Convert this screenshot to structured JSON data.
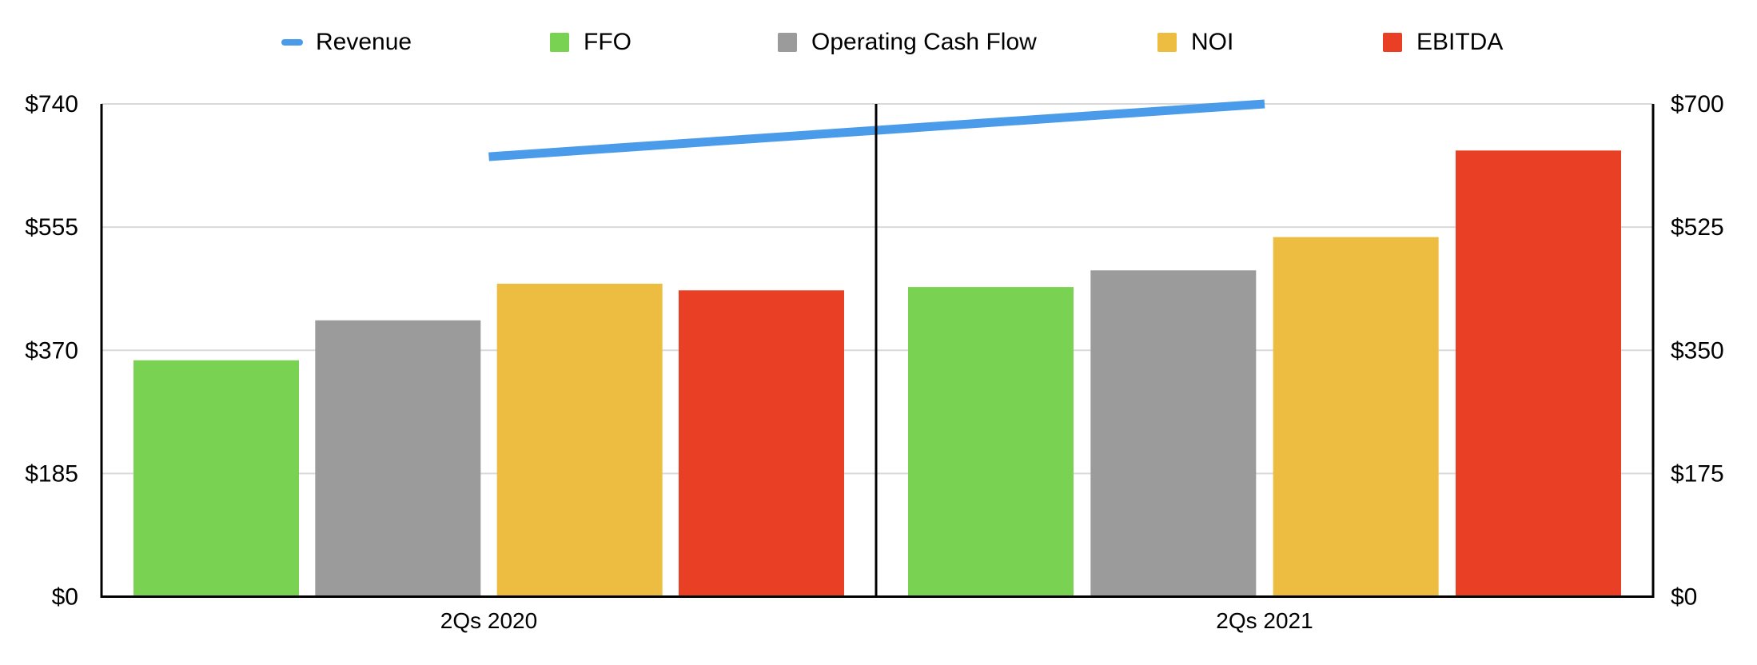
{
  "legend": {
    "items": [
      {
        "label": "Revenue",
        "color": "#4A9BEA",
        "glyph": "line"
      },
      {
        "label": "FFO",
        "color": "#79D252",
        "glyph": "square"
      },
      {
        "label": "Operating Cash Flow",
        "color": "#9B9B9B",
        "glyph": "square"
      },
      {
        "label": "NOI",
        "color": "#ECBD41",
        "glyph": "square"
      },
      {
        "label": "EBITDA",
        "color": "#E94025",
        "glyph": "square"
      }
    ]
  },
  "axes": {
    "left": {
      "ticks": [
        "$740",
        "$555",
        "$370",
        "$185",
        "$0"
      ],
      "max": 740
    },
    "right": {
      "ticks": [
        "$700",
        "$525",
        "$350",
        "$175",
        "$0"
      ],
      "max": 700
    }
  },
  "chart_data": {
    "type": "bar+line",
    "title": "",
    "categories": [
      "2Qs 2020",
      "2Qs 2021"
    ],
    "series": [
      {
        "name": "Revenue",
        "type": "line",
        "axis": "right",
        "color": "#4A9BEA",
        "values": [
          625,
          700
        ]
      },
      {
        "name": "FFO",
        "type": "bar",
        "axis": "left",
        "color": "#79D252",
        "values": [
          355,
          465
        ]
      },
      {
        "name": "Operating Cash Flow",
        "type": "bar",
        "axis": "left",
        "color": "#9B9B9B",
        "values": [
          415,
          490
        ]
      },
      {
        "name": "NOI",
        "type": "bar",
        "axis": "left",
        "color": "#ECBD41",
        "values": [
          470,
          540
        ]
      },
      {
        "name": "EBITDA",
        "type": "bar",
        "axis": "left",
        "color": "#E94025",
        "values": [
          460,
          670
        ]
      }
    ],
    "ylim_left": [
      0,
      740
    ],
    "ylim_right": [
      0,
      700
    ],
    "grid": true,
    "legend_position": "top",
    "panel_separator_between_categories": true
  },
  "colors": {
    "grid": "#D9D9D9",
    "axis": "#000000",
    "text": "#000000",
    "background": "#FFFFFF"
  }
}
